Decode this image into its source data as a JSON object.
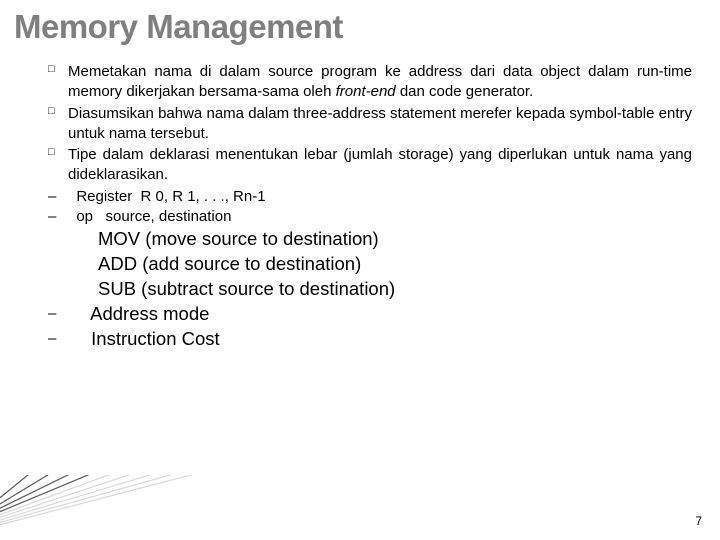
{
  "title": "Memory Management",
  "bullets": [
    {
      "marker": "□",
      "html": "Memetakan nama di dalam source program ke address dari data object dalam run-time memory dikerjakan bersama-sama oleh <span class='italic'>front-end</span> dan code generator."
    },
    {
      "marker": "□",
      "html": "Diasumsikan bahwa nama dalam three-address statement merefer kepada symbol-table entry untuk nama tersebut."
    },
    {
      "marker": "□",
      "html": "Tipe dalam deklarasi menentukan lebar (jumlah storage) yang diperlukan untuk nama yang dideklarasikan."
    }
  ],
  "dashes_small": [
    {
      "marker": "–",
      "text": "  Register  R 0, R 1, . . ., Rn-1"
    },
    {
      "marker": "–",
      "text": "  op   source, destination"
    }
  ],
  "mov_lines": [
    "MOV (move source to destination)",
    "ADD  (add source to destination)",
    "SUB (subtract source to destination)"
  ],
  "dashes_big": [
    {
      "marker": "–",
      "text": " Address mode"
    },
    {
      "marker": "–",
      "text": " Instruction Cost"
    }
  ],
  "page_number": "7",
  "decoration": {
    "line_count": 9,
    "color_light": "#d9d9d9",
    "color_dark": "#595959",
    "bg": "#ffffff"
  }
}
